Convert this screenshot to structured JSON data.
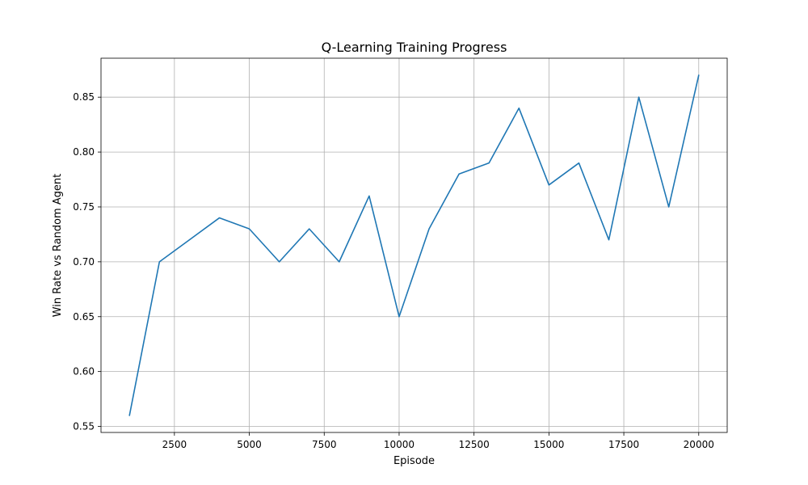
{
  "chart_data": {
    "type": "line",
    "title": "Q-Learning Training Progress",
    "xlabel": "Episode",
    "ylabel": "Win Rate vs Random Agent",
    "xlim": [
      50,
      20950
    ],
    "ylim": [
      0.5445,
      0.8855
    ],
    "xticks": [
      2500,
      5000,
      7500,
      10000,
      12500,
      15000,
      17500,
      20000
    ],
    "yticks": [
      0.55,
      0.6,
      0.65,
      0.7,
      0.75,
      0.8,
      0.85
    ],
    "xtick_labels": [
      "2500",
      "5000",
      "7500",
      "10000",
      "12500",
      "15000",
      "17500",
      "20000"
    ],
    "ytick_labels": [
      "0.55",
      "0.60",
      "0.65",
      "0.70",
      "0.75",
      "0.80",
      "0.85"
    ],
    "grid": true,
    "legend": "none",
    "series": [
      {
        "color": "#1f77b4",
        "x": [
          1000,
          2000,
          3000,
          4000,
          5000,
          6000,
          7000,
          8000,
          9000,
          10000,
          11000,
          12000,
          13000,
          14000,
          15000,
          16000,
          17000,
          18000,
          19000,
          20000
        ],
        "y": [
          0.56,
          0.7,
          0.72,
          0.74,
          0.73,
          0.7,
          0.73,
          0.7,
          0.76,
          0.65,
          0.73,
          0.78,
          0.79,
          0.84,
          0.77,
          0.79,
          0.72,
          0.85,
          0.75,
          0.87
        ]
      }
    ]
  }
}
